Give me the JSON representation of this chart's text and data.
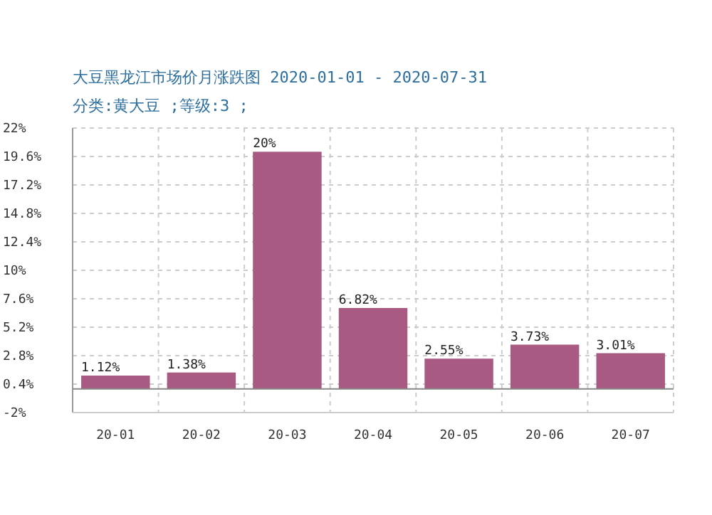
{
  "chart_data": {
    "type": "bar",
    "title": "大豆黑龙江市场价月涨跌图  2020-01-01  -  2020-07-31",
    "subtitle": "分类:黄大豆  ;等级:3  ;",
    "categories": [
      "20-01",
      "20-02",
      "20-03",
      "20-04",
      "20-05",
      "20-06",
      "20-07"
    ],
    "values": [
      1.12,
      1.38,
      20,
      6.82,
      2.55,
      3.73,
      3.01
    ],
    "value_labels": [
      "1.12%",
      "1.38%",
      "20%",
      "6.82%",
      "2.55%",
      "3.73%",
      "3.01%"
    ],
    "color": "#a85a82",
    "ylim": [
      -2,
      22
    ],
    "yticks": [
      {
        "value": -2,
        "label": "-2%"
      },
      {
        "value": 0.4,
        "label": "0.4%"
      },
      {
        "value": 2.8,
        "label": "2.8%"
      },
      {
        "value": 5.2,
        "label": "5.2%"
      },
      {
        "value": 7.6,
        "label": "7.6%"
      },
      {
        "value": 10,
        "label": "10%"
      },
      {
        "value": 12.4,
        "label": "12.4%"
      },
      {
        "value": 14.8,
        "label": "14.8%"
      },
      {
        "value": 17.2,
        "label": "17.2%"
      },
      {
        "value": 19.6,
        "label": "19.6%"
      },
      {
        "value": 22,
        "label": "22%"
      }
    ],
    "grid": true
  }
}
